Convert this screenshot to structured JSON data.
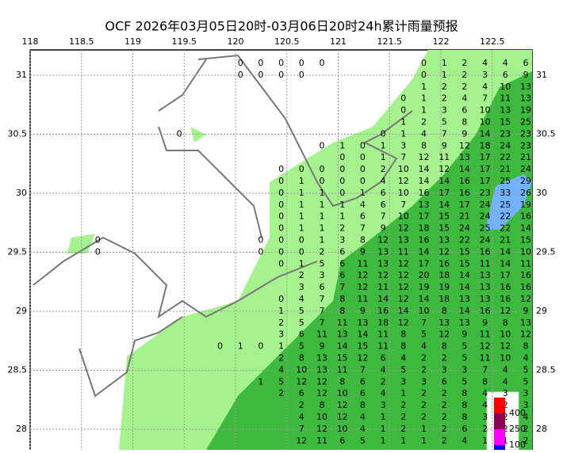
{
  "title": "OCF 2026年03月05日20时-03月06日20时24h累计雨量预报",
  "lon_ticks": [
    118,
    118.5,
    119,
    119.5,
    120,
    120.5,
    121,
    121.5,
    122,
    122.5
  ],
  "lat_ticks": [
    31,
    30.5,
    30,
    29.5,
    29,
    28.5,
    28
  ],
  "grid": true,
  "legend": {
    "labels": [
      400,
      250,
      100
    ],
    "colors": [
      "#ff0000",
      "#8b0050",
      "#ff00ff",
      "#0000ff"
    ]
  },
  "rows": [
    [
      0,
      0,
      0,
      0,
      0,
      null,
      null,
      null,
      null,
      0,
      1,
      2,
      4,
      4,
      6
    ],
    [
      0,
      0,
      0,
      0,
      null,
      null,
      null,
      null,
      null,
      0,
      1,
      2,
      3,
      6,
      9
    ],
    [
      1,
      2,
      2,
      4,
      10,
      13
    ],
    [
      0,
      1,
      2,
      4,
      7,
      11,
      13
    ],
    [
      0,
      1,
      3,
      6,
      10,
      13,
      19
    ],
    [
      1,
      2,
      5,
      8,
      10,
      15,
      25
    ],
    [
      0,
      null,
      null,
      null,
      null,
      null,
      null,
      null,
      null,
      null,
      0,
      1,
      4,
      7,
      9,
      14,
      23,
      23
    ],
    [
      0,
      1,
      0,
      1,
      3,
      8,
      9,
      12,
      18,
      24,
      23
    ],
    [
      0,
      0,
      1,
      7,
      12,
      11,
      13,
      17,
      22,
      21
    ],
    [
      0,
      0,
      0,
      0,
      0,
      2,
      10,
      14,
      12,
      14,
      17,
      21,
      24
    ],
    [
      0,
      1,
      0,
      0,
      0,
      4,
      12,
      14,
      14,
      16,
      17,
      25,
      29
    ],
    [
      0,
      1,
      1,
      0,
      1,
      6,
      10,
      16,
      17,
      16,
      23,
      33,
      26
    ],
    [
      0,
      1,
      1,
      1,
      4,
      6,
      7,
      13,
      14,
      17,
      24,
      25,
      19
    ],
    [
      0,
      1,
      1,
      1,
      6,
      7,
      10,
      17,
      15,
      21,
      24,
      22,
      16
    ],
    [
      0,
      1,
      1,
      2,
      7,
      9,
      12,
      18,
      15,
      24,
      25,
      22,
      14
    ],
    [
      0,
      null,
      null,
      null,
      null,
      null,
      null,
      null,
      0,
      0,
      0,
      1,
      3,
      8,
      12,
      13,
      16,
      13,
      22,
      24,
      21,
      15
    ],
    [
      0,
      null,
      null,
      null,
      null,
      null,
      null,
      null,
      0,
      0,
      0,
      2,
      6,
      9,
      13,
      11,
      14,
      12,
      15,
      16,
      14,
      10
    ],
    [
      0,
      1,
      5,
      6,
      11,
      13,
      12,
      17,
      16,
      15,
      11,
      14,
      11
    ],
    [
      2,
      3,
      6,
      12,
      12,
      12,
      20,
      18,
      14,
      13,
      17,
      16
    ],
    [
      3,
      6,
      7,
      12,
      11,
      12,
      19,
      19,
      14,
      13,
      16,
      16
    ],
    [
      0,
      4,
      7,
      8,
      11,
      14,
      12,
      14,
      18,
      13,
      13,
      16,
      12
    ],
    [
      1,
      5,
      7,
      8,
      9,
      16,
      14,
      10,
      8,
      14,
      16,
      12,
      9
    ],
    [
      2,
      5,
      7,
      11,
      13,
      18,
      12,
      7,
      13,
      13,
      9,
      8,
      13
    ],
    [
      3,
      6,
      11,
      13,
      14,
      11,
      8,
      5,
      12,
      9,
      11,
      10,
      12
    ],
    [
      0,
      1,
      0,
      1,
      5,
      9,
      14,
      15,
      11,
      8,
      4,
      8,
      5,
      12,
      12,
      8
    ],
    [
      2,
      8,
      13,
      15,
      12,
      6,
      4,
      2,
      2,
      5,
      11,
      10,
      4
    ],
    [
      4,
      10,
      13,
      11,
      7,
      4,
      5,
      2,
      3,
      3,
      7,
      4,
      5
    ],
    [
      1,
      5,
      12,
      12,
      8,
      6,
      2,
      3,
      3,
      6,
      5,
      8,
      4,
      5
    ],
    [
      2,
      6,
      12,
      10,
      6,
      4,
      1,
      2,
      2,
      8,
      4,
      3,
      3
    ],
    [
      2,
      8,
      12,
      8,
      3,
      2,
      2,
      2,
      8,
      4,
      2,
      3
    ],
    [
      4,
      10,
      12,
      4,
      1,
      2,
      2,
      2,
      8,
      3,
      2,
      4
    ],
    [
      7,
      12,
      10,
      4,
      1,
      2,
      1,
      2,
      6,
      2,
      2,
      2
    ],
    [
      12,
      11,
      6,
      5,
      1,
      1,
      1,
      2,
      4,
      1,
      1,
      2
    ]
  ]
}
